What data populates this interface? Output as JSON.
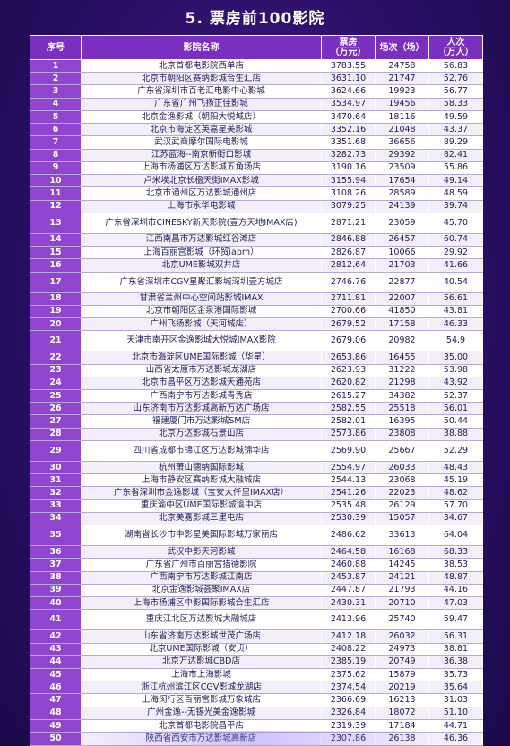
{
  "title": "5. 票房前100影院",
  "headers": {
    "rank": "序号",
    "name": "影院名称",
    "box_l1": "票房",
    "box_l2": "（万元）",
    "shows": "场次（场）",
    "aud_l1": "人次",
    "aud_l2": "（万人）"
  },
  "rows": [
    {
      "rank": "1",
      "name": "北京首都电影院西单店",
      "box": "3783.55",
      "shows": "24758",
      "aud": "56.83"
    },
    {
      "rank": "2",
      "name": "北京市朝阳区赛纳影城合生汇店",
      "box": "3631.10",
      "shows": "21747",
      "aud": "52.76"
    },
    {
      "rank": "3",
      "name": "广东省深圳市百老汇电影中心影城",
      "box": "3624.66",
      "shows": "19923",
      "aud": "56.77"
    },
    {
      "rank": "4",
      "name": "广东省广州飞扬正佳影城",
      "box": "3534.97",
      "shows": "19456",
      "aud": "58.33"
    },
    {
      "rank": "5",
      "name": "北京金逸影城（朝阳大悦城店）",
      "box": "3470.64",
      "shows": "18116",
      "aud": "49.59"
    },
    {
      "rank": "6",
      "name": "北京市海淀区英嘉星美影城",
      "box": "3352.16",
      "shows": "21048",
      "aud": "43.37"
    },
    {
      "rank": "7",
      "name": "武汉武商摩尔国际电影城",
      "box": "3351.68",
      "shows": "36656",
      "aud": "89.29"
    },
    {
      "rank": "8",
      "name": "江苏蓝海--南京新街口影城",
      "box": "3282.73",
      "shows": "29392",
      "aud": "82.41"
    },
    {
      "rank": "9",
      "name": "上海市杨浦区万达影城五角场店",
      "box": "3190.16",
      "shows": "23509",
      "aud": "55.86"
    },
    {
      "rank": "10",
      "name": "卢米埃北京长楹天街IMAX影城",
      "box": "3155.94",
      "shows": "17654",
      "aud": "49.14"
    },
    {
      "rank": "11",
      "name": "北京市通州区万达影城通州店",
      "box": "3108.26",
      "shows": "28589",
      "aud": "48.59"
    },
    {
      "rank": "12",
      "name": "上海市永华电影城",
      "box": "3079.25",
      "shows": "24139",
      "aud": "39.74"
    },
    {
      "rank": "13",
      "name": "广东省深圳市CINESKY新天影院(壹方天地IMAX店)",
      "box": "2871.21",
      "shows": "23059",
      "aud": "45.70"
    },
    {
      "rank": "14",
      "name": "江西南昌市万达影城红谷滩店",
      "box": "2846.88",
      "shows": "26457",
      "aud": "60.74"
    },
    {
      "rank": "15",
      "name": "上海百丽宫影城（环贸iapm）",
      "box": "2826.87",
      "shows": "10066",
      "aud": "29.92"
    },
    {
      "rank": "16",
      "name": "北京UME影城双井店",
      "box": "2812.64",
      "shows": "21703",
      "aud": "41.66"
    },
    {
      "rank": "17",
      "name": "广东省深圳市CGV星聚汇影城深圳壹方城店",
      "box": "2746.76",
      "shows": "22877",
      "aud": "40.54"
    },
    {
      "rank": "18",
      "name": "甘肃省兰州中心空间站影城IMAX",
      "box": "2711.81",
      "shows": "22007",
      "aud": "56.61"
    },
    {
      "rank": "19",
      "name": "北京市朝阳区金泉港国际影城",
      "box": "2700.66",
      "shows": "41850",
      "aud": "43.81"
    },
    {
      "rank": "20",
      "name": "广州飞扬影城（天河城店）",
      "box": "2679.52",
      "shows": "17158",
      "aud": "46.33"
    },
    {
      "rank": "21",
      "name": "天津市南开区金逸影城大悦城IMAX影院",
      "box": "2679.06",
      "shows": "20982",
      "aud": "54.9"
    },
    {
      "rank": "22",
      "name": "北京市海淀区UME国际影城（华星）",
      "box": "2653.86",
      "shows": "16455",
      "aud": "35.00"
    },
    {
      "rank": "23",
      "name": "山西省太原市万达影城龙湖店",
      "box": "2623.93",
      "shows": "31222",
      "aud": "53.98"
    },
    {
      "rank": "24",
      "name": "北京市昌平区万达影城天通苑店",
      "box": "2620.82",
      "shows": "21298",
      "aud": "43.92"
    },
    {
      "rank": "25",
      "name": "广西南宁市万达影城青秀店",
      "box": "2615.27",
      "shows": "34382",
      "aud": "52.37"
    },
    {
      "rank": "26",
      "name": "山东济南市万达影城高新万达广场店",
      "box": "2582.55",
      "shows": "25518",
      "aud": "56.01"
    },
    {
      "rank": "27",
      "name": "福建厦门市万达影城SM店",
      "box": "2582.01",
      "shows": "16395",
      "aud": "50.44"
    },
    {
      "rank": "28",
      "name": "北京万达影城石景山店",
      "box": "2573.86",
      "shows": "23808",
      "aud": "38.88"
    },
    {
      "rank": "29",
      "name": "四川省成都市锦江区万达影城锦华店",
      "box": "2569.90",
      "shows": "25667",
      "aud": "52.29"
    },
    {
      "rank": "30",
      "name": "杭州萧山德纳国际影城",
      "box": "2554.97",
      "shows": "26033",
      "aud": "48.43"
    },
    {
      "rank": "31",
      "name": "上海市静安区赛纳影城大融城店",
      "box": "2544.13",
      "shows": "23068",
      "aud": "45.19"
    },
    {
      "rank": "32",
      "name": "广东省深圳市金逸影城（宝安大仟里IMAX店）",
      "box": "2541.26",
      "shows": "22023",
      "aud": "48.62"
    },
    {
      "rank": "33",
      "name": "重庆渝中区UME国际影城渝中店",
      "box": "2535.48",
      "shows": "26129",
      "aud": "57.70"
    },
    {
      "rank": "34",
      "name": "北京美嘉影城三里屯店",
      "box": "2530.39",
      "shows": "15057",
      "aud": "34.67"
    },
    {
      "rank": "35",
      "name": "湖南省长沙市中影星美国际影城万家丽店",
      "box": "2486.62",
      "shows": "33613",
      "aud": "64.04"
    },
    {
      "rank": "36",
      "name": "武汉中影天河影城",
      "box": "2464.58",
      "shows": "16168",
      "aud": "68.33"
    },
    {
      "rank": "37",
      "name": "广东省广州市百丽宫猎德影院",
      "box": "2460.88",
      "shows": "14245",
      "aud": "38.53"
    },
    {
      "rank": "38",
      "name": "广西南宁市万达影城江南店",
      "box": "2453.87",
      "shows": "24121",
      "aud": "48.87"
    },
    {
      "rank": "39",
      "name": "北京金逸影城荟聚IMAX店",
      "box": "2447.87",
      "shows": "21793",
      "aud": "44.16"
    },
    {
      "rank": "40",
      "name": "上海市杨浦区中影国际影城合生汇店",
      "box": "2430.31",
      "shows": "20710",
      "aud": "47.03"
    },
    {
      "rank": "41",
      "name": "重庆江北区万达影城大融城店",
      "box": "2413.96",
      "shows": "25740",
      "aud": "59.47"
    },
    {
      "rank": "42",
      "name": "山东省济南万达影城世茂广场店",
      "box": "2412.18",
      "shows": "26032",
      "aud": "56.31"
    },
    {
      "rank": "43",
      "name": "北京UME国际影城（安贞）",
      "box": "2408.22",
      "shows": "24973",
      "aud": "38.81"
    },
    {
      "rank": "44",
      "name": "北京万达影城CBD店",
      "box": "2385.19",
      "shows": "20749",
      "aud": "36.38"
    },
    {
      "rank": "45",
      "name": "上海市上海影城",
      "box": "2375.62",
      "shows": "15879",
      "aud": "35.73"
    },
    {
      "rank": "46",
      "name": "浙江杭州滨江区CGV影城龙湖店",
      "box": "2374.54",
      "shows": "20219",
      "aud": "35.64"
    },
    {
      "rank": "47",
      "name": "上海闵行区百丽宫影城万象城店",
      "box": "2366.69",
      "shows": "16213",
      "aud": "31.03"
    },
    {
      "rank": "48",
      "name": "广州金逸--无锡光美金逸影城",
      "box": "2326.84",
      "shows": "18072",
      "aud": "51.10"
    },
    {
      "rank": "49",
      "name": "北京首都电影院昌平店",
      "box": "2319.39",
      "shows": "17184",
      "aud": "44.71"
    },
    {
      "rank": "50",
      "name": "陕西省西安市万达影城高新店",
      "box": "2307.86",
      "shows": "26138",
      "aud": "46.36"
    }
  ]
}
